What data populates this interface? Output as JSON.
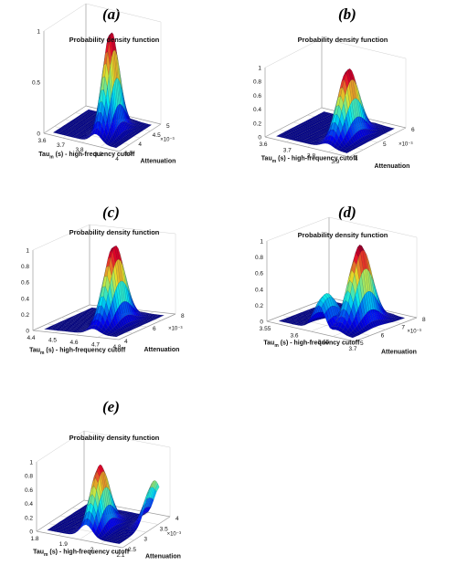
{
  "colors": {
    "surface_low": "#1a237e",
    "surface_mid": "#19c3b4",
    "surface_high": "#c62828",
    "axis": "#555555"
  },
  "chart_data": [
    {
      "panel_label": "(a)",
      "type": "surface3d",
      "title": "Probability density function",
      "xlabel_main": "Tau",
      "xlabel_sub": "m",
      "xlabel_rest": " (s) - high-frequency cutoff",
      "ylabel": "Attenuation",
      "y_exponent": "×10⁻³",
      "xlim": [
        3.6,
        4.0
      ],
      "ylim": [
        3.5,
        5
      ],
      "zlim": [
        0,
        1
      ],
      "xticks": [
        "3.6",
        "3.7",
        "3.8",
        "3.9",
        "4"
      ],
      "yticks": [
        "3.5",
        "4",
        "4.5",
        "5"
      ],
      "zticks": [
        "0",
        "0.5",
        "1"
      ],
      "peaks": [
        {
          "x": 3.86,
          "y": 4.15,
          "height": 1.0
        }
      ]
    },
    {
      "panel_label": "(b)",
      "type": "surface3d",
      "title": "Probability density function",
      "xlabel_main": "Tau",
      "xlabel_sub": "m",
      "xlabel_rest": " (s) - high-frequency cutoff",
      "ylabel": "Attenuation",
      "y_exponent": "×10⁻³",
      "xlim": [
        3.6,
        3.95
      ],
      "ylim": [
        4,
        6
      ],
      "zlim": [
        0,
        1
      ],
      "xticks": [
        "3.6",
        "3.7",
        "3.8",
        "3.9"
      ],
      "yticks": [
        "4",
        "5",
        "6"
      ],
      "zticks": [
        "0",
        "0.2",
        "0.4",
        "0.6",
        "0.8",
        "1"
      ],
      "peaks": [
        {
          "x": 3.84,
          "y": 4.9,
          "height": 1.0
        }
      ]
    },
    {
      "panel_label": "(c)",
      "type": "surface3d",
      "title": "Probability density function",
      "xlabel_main": "Tau",
      "xlabel_sub": "m",
      "xlabel_rest": " (s) - high-frequency cutoff",
      "ylabel": "Attenuation",
      "y_exponent": "×10⁻³",
      "xlim": [
        4.4,
        4.8
      ],
      "ylim": [
        4,
        8
      ],
      "zlim": [
        0,
        1
      ],
      "xticks": [
        "4.4",
        "4.5",
        "4.6",
        "4.7",
        "4.8"
      ],
      "yticks": [
        "4",
        "6",
        "8"
      ],
      "zticks": [
        "0",
        "0.2",
        "0.4",
        "0.6",
        "0.8",
        "1"
      ],
      "peaks": [
        {
          "x": 4.66,
          "y": 5.8,
          "height": 1.0
        }
      ]
    },
    {
      "panel_label": "(d)",
      "type": "surface3d",
      "title": "Probability density function",
      "xlabel_main": "Tau",
      "xlabel_sub": "m",
      "xlabel_rest": " (s) - high-frequency cutoff",
      "ylabel": "Attenuation",
      "y_exponent": "×10⁻³",
      "xlim": [
        3.55,
        3.7
      ],
      "ylim": [
        5,
        8
      ],
      "zlim": [
        0,
        1
      ],
      "xticks": [
        "3.55",
        "3.6",
        "3.65",
        "3.7"
      ],
      "yticks": [
        "5",
        "6",
        "7",
        "8"
      ],
      "zticks": [
        "0",
        "0.2",
        "0.4",
        "0.6",
        "0.8",
        "1"
      ],
      "peaks": [
        {
          "x": 3.66,
          "y": 6.4,
          "height": 1.0
        },
        {
          "x": 3.63,
          "y": 5.6,
          "height": 0.42
        }
      ]
    },
    {
      "panel_label": "(e)",
      "type": "surface3d",
      "title": "Probability density function",
      "xlabel_main": "Tau",
      "xlabel_sub": "m",
      "xlabel_rest": " (s) - high-frequency cutoff",
      "ylabel": "Attenuation",
      "y_exponent": "×10⁻³",
      "xlim": [
        1.8,
        2.1
      ],
      "ylim": [
        2.5,
        4
      ],
      "zlim": [
        0,
        1
      ],
      "xticks": [
        "1.8",
        "1.9",
        "2",
        "2.1"
      ],
      "yticks": [
        "2.5",
        "3",
        "3.5",
        "4"
      ],
      "zticks": [
        "0",
        "0.2",
        "0.4",
        "0.6",
        "0.8",
        "1"
      ],
      "peaks": [
        {
          "x": 1.96,
          "y": 3.05,
          "height": 0.92
        },
        {
          "x": 2.08,
          "y": 3.7,
          "height": 0.6
        }
      ]
    }
  ]
}
